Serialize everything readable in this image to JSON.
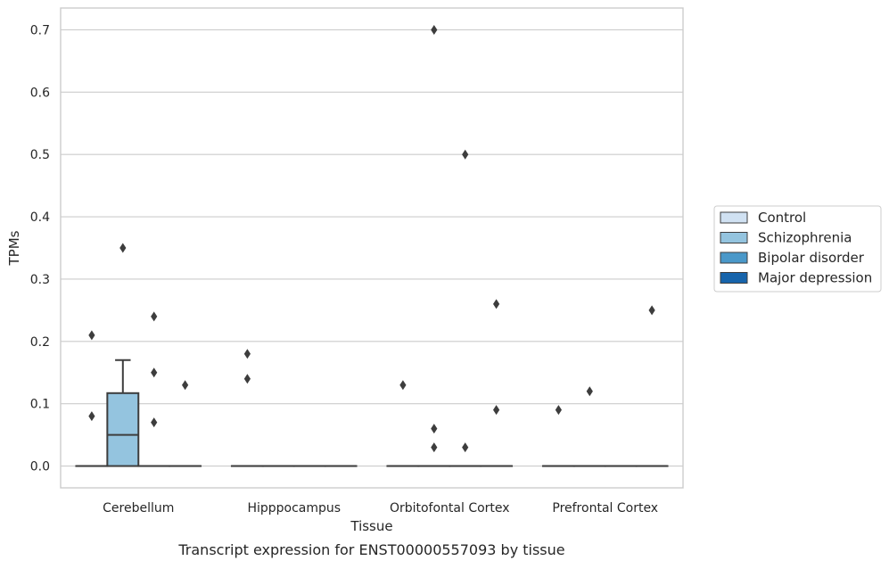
{
  "chart_data": {
    "type": "box",
    "caption": "Transcript expression for ENST00000557093 by tissue",
    "xlabel": "Tissue",
    "ylabel": "TPMs",
    "ylim": [
      -0.035,
      0.735
    ],
    "yticks": [
      0.0,
      0.1,
      0.2,
      0.3,
      0.4,
      0.5,
      0.6,
      0.7
    ],
    "ytick_labels": [
      "0.0",
      "0.1",
      "0.2",
      "0.3",
      "0.4",
      "0.5",
      "0.6",
      "0.7"
    ],
    "grid": "horizontal",
    "legend_position": "right",
    "categories": [
      "Cerebellum",
      "Hipppocampus",
      "Orbitofontal Cortex",
      "Prefrontal Cortex"
    ],
    "series": [
      {
        "name": "Control",
        "color": "#d0e1f2",
        "boxes": [
          {
            "q1": 0,
            "median": 0,
            "q3": 0,
            "whisker_low": 0,
            "whisker_high": 0,
            "outliers": [
              0.08,
              0.21
            ]
          },
          {
            "q1": 0,
            "median": 0,
            "q3": 0,
            "whisker_low": 0,
            "whisker_high": 0,
            "outliers": [
              0.14,
              0.18
            ]
          },
          {
            "q1": 0,
            "median": 0,
            "q3": 0,
            "whisker_low": 0,
            "whisker_high": 0,
            "outliers": [
              0.13
            ]
          },
          {
            "q1": 0,
            "median": 0,
            "q3": 0,
            "whisker_low": 0,
            "whisker_high": 0,
            "outliers": [
              0.09
            ]
          }
        ]
      },
      {
        "name": "Schizophrenia",
        "color": "#94c4df",
        "boxes": [
          {
            "q1": 0,
            "median": 0.05,
            "q3": 0.117,
            "whisker_low": 0,
            "whisker_high": 0.17,
            "outliers": [
              0.35
            ]
          },
          {
            "q1": 0,
            "median": 0,
            "q3": 0,
            "whisker_low": 0,
            "whisker_high": 0,
            "outliers": []
          },
          {
            "q1": 0,
            "median": 0,
            "q3": 0,
            "whisker_low": 0,
            "whisker_high": 0,
            "outliers": [
              0.03,
              0.06,
              0.7
            ]
          },
          {
            "q1": 0,
            "median": 0,
            "q3": 0,
            "whisker_low": 0,
            "whisker_high": 0,
            "outliers": [
              0.12
            ]
          }
        ]
      },
      {
        "name": "Bipolar disorder",
        "color": "#4a98c9",
        "boxes": [
          {
            "q1": 0,
            "median": 0,
            "q3": 0,
            "whisker_low": 0,
            "whisker_high": 0,
            "outliers": [
              0.07,
              0.15,
              0.24
            ]
          },
          {
            "q1": 0,
            "median": 0,
            "q3": 0,
            "whisker_low": 0,
            "whisker_high": 0,
            "outliers": []
          },
          {
            "q1": 0,
            "median": 0,
            "q3": 0,
            "whisker_low": 0,
            "whisker_high": 0,
            "outliers": [
              0.03,
              0.5
            ]
          },
          {
            "q1": 0,
            "median": 0,
            "q3": 0,
            "whisker_low": 0,
            "whisker_high": 0,
            "outliers": []
          }
        ]
      },
      {
        "name": "Major depression",
        "color": "#1764ab",
        "boxes": [
          {
            "q1": 0,
            "median": 0,
            "q3": 0,
            "whisker_low": 0,
            "whisker_high": 0,
            "outliers": [
              0.13
            ]
          },
          {
            "q1": 0,
            "median": 0,
            "q3": 0,
            "whisker_low": 0,
            "whisker_high": 0,
            "outliers": []
          },
          {
            "q1": 0,
            "median": 0,
            "q3": 0,
            "whisker_low": 0,
            "whisker_high": 0,
            "outliers": [
              0.09,
              0.26
            ]
          },
          {
            "q1": 0,
            "median": 0,
            "q3": 0,
            "whisker_low": 0,
            "whisker_high": 0,
            "outliers": [
              0.25
            ]
          }
        ]
      }
    ]
  }
}
